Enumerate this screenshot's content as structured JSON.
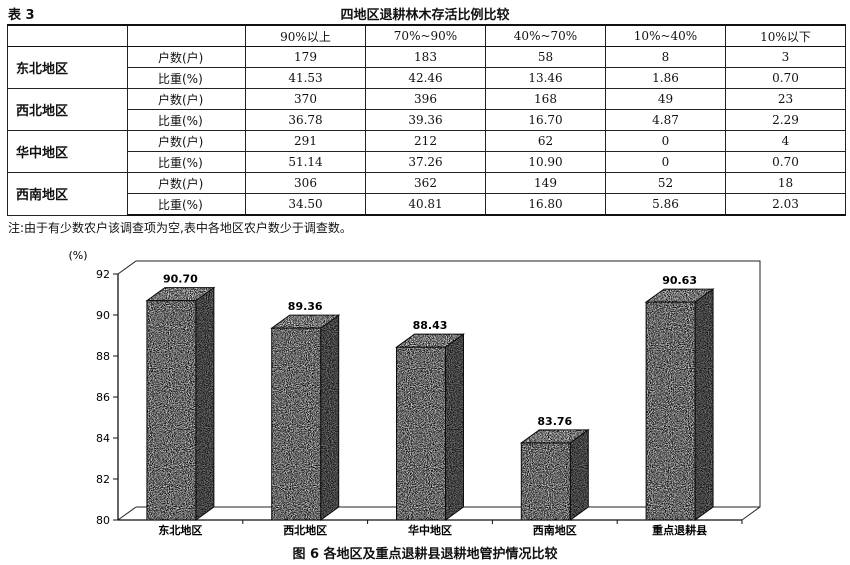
{
  "table": {
    "label": "表 3",
    "title": "四地区退耕林木存活比例比较",
    "columns": [
      "90%以上",
      "70%~90%",
      "40%~70%",
      "10%~40%",
      "10%以下"
    ],
    "rows": [
      {
        "region": "东北地区",
        "metric_a": "户数(户)",
        "values_a": [
          "179",
          "183",
          "58",
          "8",
          "3"
        ],
        "metric_b": "比重(%)",
        "values_b": [
          "41.53",
          "42.46",
          "13.46",
          "1.86",
          "0.70"
        ]
      },
      {
        "region": "西北地区",
        "metric_a": "户数(户)",
        "values_a": [
          "370",
          "396",
          "168",
          "49",
          "23"
        ],
        "metric_b": "比重(%)",
        "values_b": [
          "36.78",
          "39.36",
          "16.70",
          "4.87",
          "2.29"
        ]
      },
      {
        "region": "华中地区",
        "metric_a": "户数(户)",
        "values_a": [
          "291",
          "212",
          "62",
          "0",
          "4"
        ],
        "metric_b": "比重(%)",
        "values_b": [
          "51.14",
          "37.26",
          "10.90",
          "0",
          "0.70"
        ]
      },
      {
        "region": "西南地区",
        "metric_a": "户数(户)",
        "values_a": [
          "306",
          "362",
          "149",
          "52",
          "18"
        ],
        "metric_b": "比重(%)",
        "values_b": [
          "34.50",
          "40.81",
          "16.80",
          "5.86",
          "2.03"
        ]
      }
    ],
    "note": "注:由于有少数农户该调查项为空,表中各地区农户数少于调查数。"
  },
  "chart_data": {
    "type": "bar",
    "title": "图 6   各地区及重点退耕县退耕地管护情况比较",
    "ylabel": "(%)",
    "categories": [
      "东北地区",
      "西北地区",
      "华中地区",
      "西南地区",
      "重点退耕县"
    ],
    "values": [
      90.7,
      89.36,
      88.43,
      83.76,
      90.63
    ],
    "value_labels": [
      "90.70",
      "89.36",
      "88.43",
      "83.76",
      "90.63"
    ],
    "ylim": [
      80,
      92
    ],
    "yticks": [
      80,
      82,
      84,
      86,
      88,
      90,
      92
    ],
    "grid": false,
    "style": "3d"
  }
}
